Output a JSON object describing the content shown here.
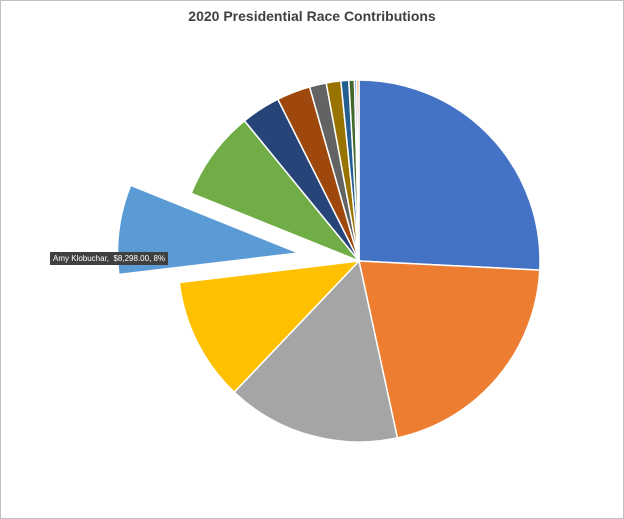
{
  "chart_data": {
    "type": "pie",
    "title": "2020 Presidential Race Contributions",
    "start_angle_deg": 0,
    "exploded_slice_index": 4,
    "slices": [
      {
        "value": 25.8,
        "color": "#4472C4"
      },
      {
        "value": 20.8,
        "color": "#ED7D31"
      },
      {
        "value": 15.5,
        "color": "#A5A5A5"
      },
      {
        "value": 11.0,
        "color": "#FFC000"
      },
      {
        "value": 8.0,
        "color": "#5B9BD5"
      },
      {
        "value": 8.0,
        "color": "#70AD47"
      },
      {
        "value": 3.5,
        "color": "#264478"
      },
      {
        "value": 3.0,
        "color": "#9E480E"
      },
      {
        "value": 1.5,
        "color": "#636363"
      },
      {
        "value": 1.3,
        "color": "#997300"
      },
      {
        "value": 0.7,
        "color": "#255E91"
      },
      {
        "value": 0.5,
        "color": "#43682B"
      },
      {
        "value": 0.2,
        "color": "#698ED0"
      },
      {
        "value": 0.2,
        "color": "#F1975A"
      }
    ],
    "data_label": {
      "category": "Amy Klobuchar",
      "value": "$8,298.00",
      "percent": "8%",
      "text": "Amy Klobuchar,  $8,298.00, 8%"
    }
  }
}
